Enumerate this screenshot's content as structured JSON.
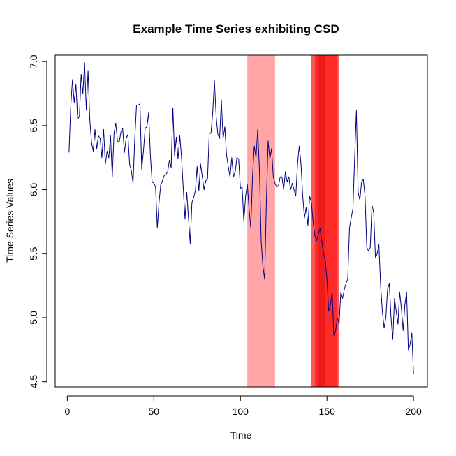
{
  "chart_data": {
    "type": "line",
    "title": "Example Time Series exhibiting CSD",
    "xlabel": "Time",
    "ylabel": "Time Series Values",
    "xlim": [
      -7,
      208
    ],
    "ylim": [
      4.46,
      7.05
    ],
    "xticks": [
      0,
      50,
      100,
      150,
      200
    ],
    "yticks": [
      4.5,
      5.0,
      5.5,
      6.0,
      6.5,
      7.0
    ],
    "xtick_labels": [
      "0",
      "50",
      "100",
      "150",
      "200"
    ],
    "ytick_labels": [
      "4.5",
      "5.0",
      "5.5",
      "6.0",
      "6.5",
      "7.0"
    ],
    "line_color": "#000080",
    "highlight_regions": [
      {
        "start": 104,
        "end": 120,
        "color": "#FFA5A5"
      },
      {
        "start": 141,
        "end": 157,
        "color": "#FF5A5A"
      },
      {
        "start": 143,
        "end": 156,
        "color": "#FF2A2A"
      },
      {
        "start": 145,
        "end": 149,
        "color": "#F01C1C"
      }
    ],
    "series": [
      {
        "x": [
          1,
          2,
          3,
          4,
          5,
          6,
          7,
          8,
          9,
          10,
          11,
          12,
          13,
          14,
          15,
          16,
          17,
          18,
          19,
          20,
          21,
          22,
          23,
          24,
          25,
          26,
          27,
          28,
          29,
          30,
          31,
          32,
          33,
          34,
          35,
          36,
          37,
          38,
          39,
          40,
          41,
          42,
          43,
          44,
          45,
          46,
          47,
          48,
          49,
          50,
          51,
          52,
          53,
          54,
          55,
          56,
          57,
          58,
          59,
          60,
          61,
          62,
          63,
          64,
          65,
          66,
          67,
          68,
          69,
          70,
          71,
          72,
          73,
          74,
          75,
          76,
          77,
          78,
          79,
          80,
          81,
          82,
          83,
          84,
          85,
          86,
          87,
          88,
          89,
          90,
          91,
          92,
          93,
          94,
          95,
          96,
          97,
          98,
          99,
          100,
          101,
          102,
          103,
          104,
          105,
          106,
          107,
          108,
          109,
          110,
          111,
          112,
          113,
          114,
          115,
          116,
          117,
          118,
          119,
          120,
          121,
          122,
          123,
          124,
          125,
          126,
          127,
          128,
          129,
          130,
          131,
          132,
          133,
          134,
          135,
          136,
          137,
          138,
          139,
          140,
          141,
          142,
          143,
          144,
          145,
          146,
          147,
          148,
          149,
          150,
          151,
          152,
          153,
          154,
          155,
          156,
          157,
          158,
          159,
          160,
          161,
          162,
          163,
          164,
          165,
          166,
          167,
          168,
          169,
          170,
          171,
          172,
          173,
          174,
          175,
          176,
          177,
          178,
          179,
          180,
          181,
          182,
          183,
          184,
          185,
          186,
          187,
          188,
          189,
          190,
          191,
          192,
          193,
          194,
          195,
          196,
          197,
          198,
          199,
          200
        ],
        "values": [
          6.29,
          6.65,
          6.86,
          6.68,
          6.82,
          6.55,
          6.57,
          6.9,
          6.75,
          6.99,
          6.62,
          6.93,
          6.55,
          6.37,
          6.3,
          6.47,
          6.32,
          6.42,
          6.4,
          6.25,
          6.47,
          6.2,
          6.3,
          6.25,
          6.42,
          6.1,
          6.44,
          6.52,
          6.38,
          6.37,
          6.45,
          6.48,
          6.29,
          6.4,
          6.43,
          6.2,
          6.15,
          6.05,
          6.4,
          6.66,
          6.66,
          6.67,
          6.16,
          6.3,
          6.48,
          6.49,
          6.6,
          6.27,
          6.06,
          6.05,
          6.02,
          5.7,
          5.9,
          6.04,
          6.07,
          6.11,
          6.12,
          6.14,
          6.23,
          6.17,
          6.64,
          6.26,
          6.41,
          6.24,
          6.42,
          6.25,
          6.01,
          5.77,
          5.98,
          5.78,
          5.58,
          5.9,
          5.94,
          5.99,
          6.18,
          5.99,
          6.2,
          6.1,
          6.0,
          6.07,
          6.08,
          6.44,
          6.44,
          6.6,
          6.85,
          6.57,
          6.43,
          6.4,
          6.7,
          6.4,
          6.49,
          6.27,
          6.18,
          6.1,
          6.25,
          6.1,
          6.14,
          6.25,
          6.24,
          6.01,
          6.02,
          5.75,
          5.95,
          6.04,
          5.85,
          5.7,
          6.1,
          6.34,
          6.25,
          6.47,
          6.15,
          5.6,
          5.4,
          5.3,
          5.9,
          6.38,
          6.24,
          6.32,
          6.1,
          6.05,
          6.02,
          6.03,
          6.1,
          6.1,
          6.0,
          6.14,
          6.06,
          6.1,
          6.0,
          6.05,
          6.0,
          5.95,
          6.2,
          6.34,
          6.2,
          5.95,
          5.78,
          5.86,
          5.72,
          5.95,
          5.9,
          5.75,
          5.64,
          5.6,
          5.65,
          5.7,
          5.6,
          5.5,
          5.45,
          5.3,
          5.05,
          5.1,
          5.2,
          4.85,
          4.9,
          5.0,
          4.95,
          5.2,
          5.15,
          5.22,
          5.27,
          5.3,
          5.7,
          5.78,
          5.85,
          6.25,
          6.62,
          5.98,
          5.92,
          6.06,
          6.08,
          5.95,
          5.55,
          5.52,
          5.55,
          5.88,
          5.82,
          5.47,
          5.5,
          5.57,
          5.25,
          5.05,
          4.92,
          5.0,
          5.22,
          5.27,
          5.0,
          4.83,
          5.15,
          5.05,
          4.95,
          5.2,
          5.07,
          4.9,
          5.1,
          5.2,
          4.75,
          4.79,
          4.88,
          4.56
        ]
      }
    ]
  }
}
